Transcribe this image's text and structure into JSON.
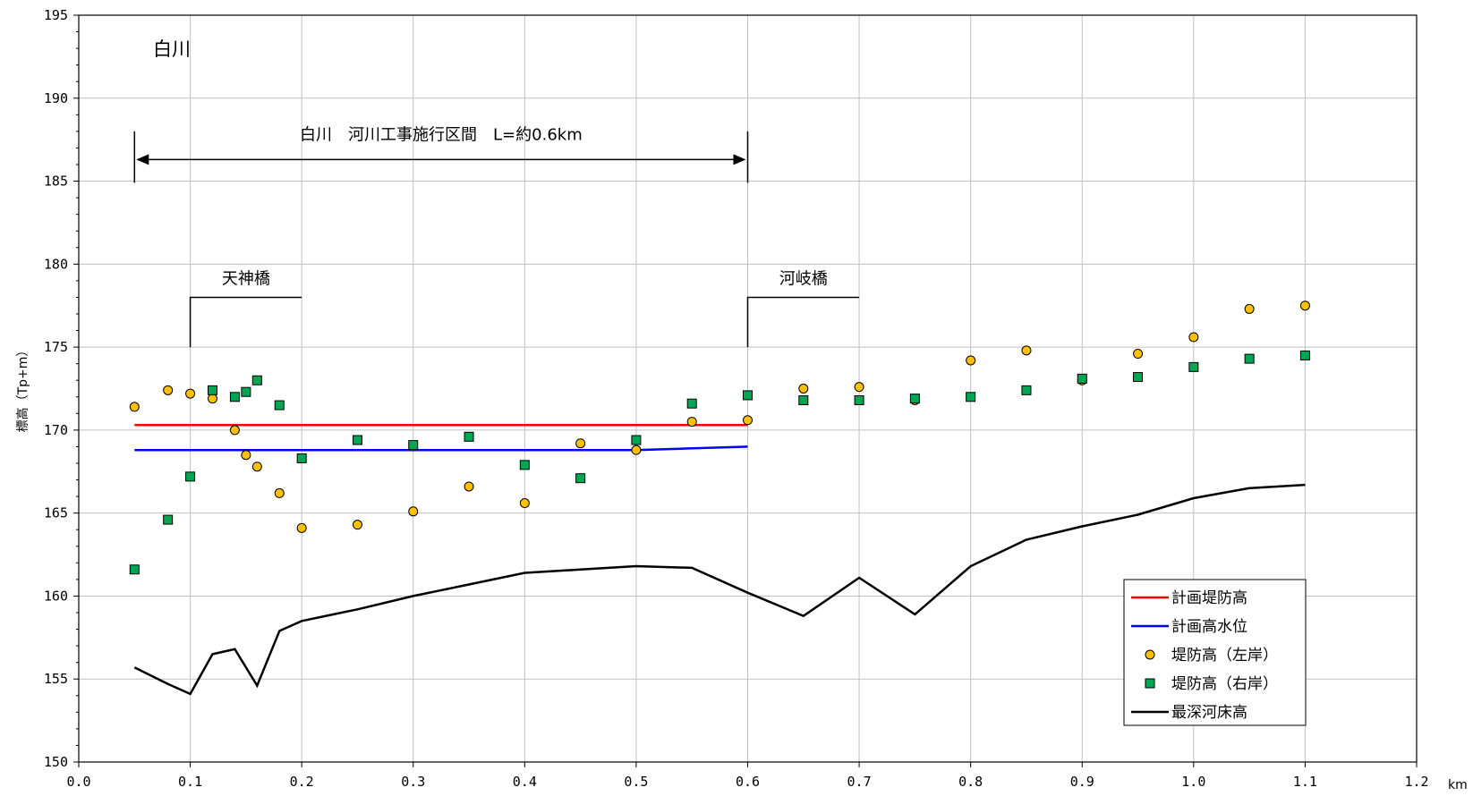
{
  "chart_data": {
    "type": "line",
    "title": "白川",
    "xlabel": "km",
    "ylabel": "標高（Tp+m）",
    "xlim": [
      0.0,
      1.2
    ],
    "ylim": [
      150,
      195
    ],
    "x_ticks": [
      "0.0",
      "0.1",
      "0.2",
      "0.3",
      "0.4",
      "0.5",
      "0.6",
      "0.7",
      "0.8",
      "0.9",
      "1.0",
      "1.1",
      "1.2"
    ],
    "y_ticks": [
      "150",
      "155",
      "160",
      "165",
      "170",
      "175",
      "180",
      "185",
      "190",
      "195"
    ],
    "grid": true,
    "legend_position": "bottom-right",
    "series": [
      {
        "name": "計画堤防高",
        "kind": "line",
        "color": "#ff0000",
        "points": [
          [
            0.05,
            170.3
          ],
          [
            0.6,
            170.3
          ]
        ]
      },
      {
        "name": "計画高水位",
        "kind": "line",
        "color": "#0000ff",
        "points": [
          [
            0.05,
            168.8
          ],
          [
            0.5,
            168.8
          ],
          [
            0.6,
            169.0
          ]
        ]
      },
      {
        "name": "堤防高（左岸）",
        "kind": "scatter",
        "marker": "circle",
        "color": "#ffc000",
        "points": [
          [
            0.05,
            171.4
          ],
          [
            0.08,
            172.4
          ],
          [
            0.1,
            172.2
          ],
          [
            0.12,
            171.9
          ],
          [
            0.14,
            170.0
          ],
          [
            0.15,
            168.5
          ],
          [
            0.16,
            167.8
          ],
          [
            0.18,
            166.2
          ],
          [
            0.2,
            164.1
          ],
          [
            0.25,
            164.3
          ],
          [
            0.3,
            165.1
          ],
          [
            0.35,
            166.6
          ],
          [
            0.4,
            165.6
          ],
          [
            0.45,
            169.2
          ],
          [
            0.5,
            168.8
          ],
          [
            0.55,
            170.5
          ],
          [
            0.6,
            170.6
          ],
          [
            0.65,
            172.5
          ],
          [
            0.7,
            172.6
          ],
          [
            0.75,
            171.8
          ],
          [
            0.8,
            174.2
          ],
          [
            0.85,
            174.8
          ],
          [
            0.9,
            173.0
          ],
          [
            0.95,
            174.6
          ],
          [
            1.0,
            175.6
          ],
          [
            1.05,
            177.3
          ],
          [
            1.1,
            177.5
          ]
        ]
      },
      {
        "name": "堤防高（右岸）",
        "kind": "scatter",
        "marker": "square",
        "color": "#00a651",
        "points": [
          [
            0.05,
            161.6
          ],
          [
            0.08,
            164.6
          ],
          [
            0.1,
            167.2
          ],
          [
            0.12,
            172.4
          ],
          [
            0.14,
            172.0
          ],
          [
            0.15,
            172.3
          ],
          [
            0.16,
            173.0
          ],
          [
            0.18,
            171.5
          ],
          [
            0.2,
            168.3
          ],
          [
            0.25,
            169.4
          ],
          [
            0.3,
            169.1
          ],
          [
            0.35,
            169.6
          ],
          [
            0.4,
            167.9
          ],
          [
            0.45,
            167.1
          ],
          [
            0.5,
            169.4
          ],
          [
            0.55,
            171.6
          ],
          [
            0.6,
            172.1
          ],
          [
            0.65,
            171.8
          ],
          [
            0.7,
            171.8
          ],
          [
            0.75,
            171.9
          ],
          [
            0.8,
            172.0
          ],
          [
            0.85,
            172.4
          ],
          [
            0.9,
            173.1
          ],
          [
            0.95,
            173.2
          ],
          [
            1.0,
            173.8
          ],
          [
            1.05,
            174.3
          ],
          [
            1.1,
            174.5
          ]
        ]
      },
      {
        "name": "最深河床高",
        "kind": "line",
        "color": "#000000",
        "points": [
          [
            0.05,
            155.7
          ],
          [
            0.08,
            154.7
          ],
          [
            0.1,
            154.1
          ],
          [
            0.12,
            156.5
          ],
          [
            0.14,
            156.8
          ],
          [
            0.16,
            154.6
          ],
          [
            0.18,
            157.9
          ],
          [
            0.2,
            158.5
          ],
          [
            0.25,
            159.2
          ],
          [
            0.3,
            160.0
          ],
          [
            0.35,
            160.7
          ],
          [
            0.4,
            161.4
          ],
          [
            0.45,
            161.6
          ],
          [
            0.5,
            161.8
          ],
          [
            0.55,
            161.7
          ],
          [
            0.6,
            160.2
          ],
          [
            0.65,
            158.8
          ],
          [
            0.7,
            161.1
          ],
          [
            0.75,
            158.9
          ],
          [
            0.8,
            161.8
          ],
          [
            0.85,
            163.4
          ],
          [
            0.9,
            164.2
          ],
          [
            0.95,
            164.9
          ],
          [
            1.0,
            165.9
          ],
          [
            1.05,
            166.5
          ],
          [
            1.1,
            166.7
          ]
        ]
      }
    ],
    "annotations": {
      "section": {
        "label": "白川　河川工事施行区間　L=約0.6km",
        "from": 0.05,
        "to": 0.6,
        "y": 186.3
      },
      "bridges": [
        {
          "label": "天神橋",
          "x_from": 0.1,
          "x_to": 0.2,
          "y_bottom": 175,
          "y_top": 178
        },
        {
          "label": "河岐橋",
          "x_from": 0.6,
          "x_to": 0.7,
          "y_bottom": 175,
          "y_top": 178
        }
      ]
    }
  }
}
